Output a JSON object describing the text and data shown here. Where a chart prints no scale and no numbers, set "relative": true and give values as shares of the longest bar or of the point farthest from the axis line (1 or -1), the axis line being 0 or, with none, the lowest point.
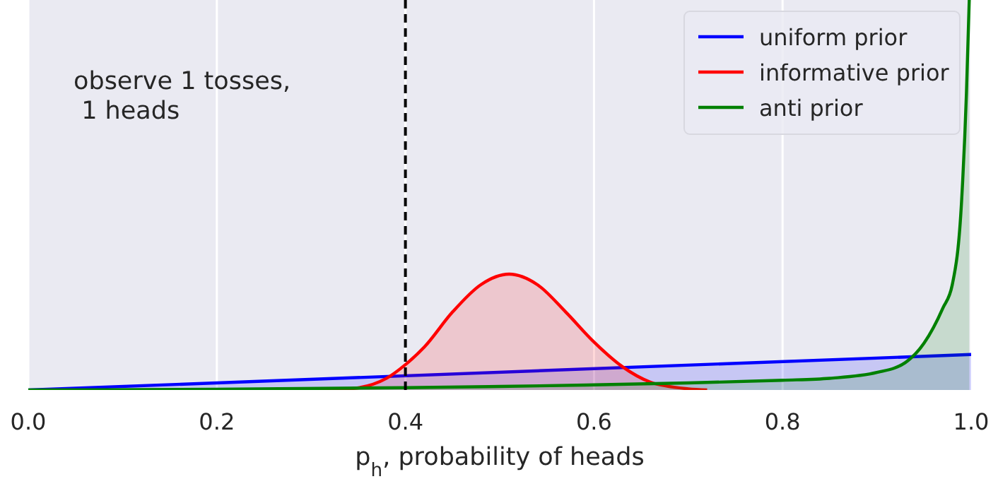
{
  "chart_data": {
    "type": "area",
    "relative": true,
    "xlabel": "p$_{h}$, probability of heads",
    "xlim": [
      0,
      1
    ],
    "xticks": [
      {
        "value": 0,
        "label": "0.0"
      },
      {
        "value": 0.2,
        "label": "0.2"
      },
      {
        "value": 0.4,
        "label": "0.4"
      },
      {
        "value": 0.6,
        "label": "0.6"
      },
      {
        "value": 0.8,
        "label": "0.8"
      },
      {
        "value": 1,
        "label": "1.0"
      }
    ],
    "grid": "x",
    "legend": "top right",
    "ref_lines": [
      {
        "axis": "x",
        "value": 0.4,
        "color": "#000000",
        "line_style": "dashed"
      }
    ],
    "annotations": [
      "observe 1 tosses,\n 1 heads"
    ],
    "series": [
      {
        "name": "uniform prior",
        "color": "#0000ff",
        "x": [
          0,
          1
        ],
        "values": [
          0,
          0.091
        ]
      },
      {
        "name": "informative prior",
        "color": "#ff0000",
        "x": [
          0.3,
          0.34,
          0.38,
          0.4,
          0.42,
          0.45,
          0.48,
          0.51,
          0.54,
          0.57,
          0.6,
          0.63,
          0.66,
          0.7,
          0.72
        ],
        "values": [
          0,
          0.003,
          0.03,
          0.065,
          0.11,
          0.2,
          0.27,
          0.297,
          0.27,
          0.2,
          0.123,
          0.06,
          0.02,
          0.003,
          0
        ]
      },
      {
        "name": "anti prior",
        "color": "#008000",
        "x": [
          0,
          0.2,
          0.4,
          0.5,
          0.6,
          0.7,
          0.8,
          0.85,
          0.9,
          0.93,
          0.95,
          0.97,
          0.98,
          0.99,
          0.995,
          0.998
        ],
        "values": [
          0,
          0.002,
          0.006,
          0.009,
          0.013,
          0.018,
          0.025,
          0.03,
          0.045,
          0.07,
          0.12,
          0.21,
          0.27,
          0.49,
          0.76,
          1
        ]
      }
    ]
  }
}
